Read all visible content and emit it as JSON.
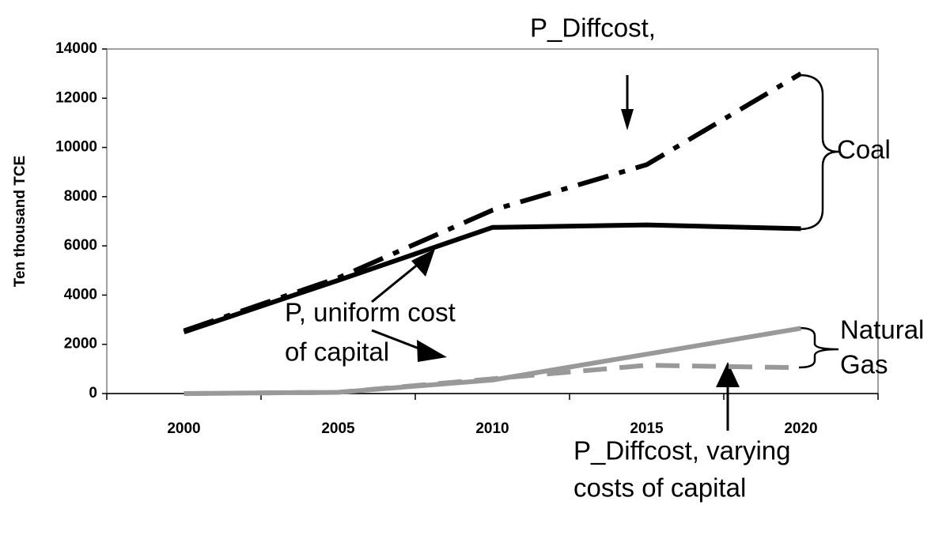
{
  "chart_data": {
    "type": "line",
    "y_label": "Ten thousand TCE",
    "categories": [
      "2000",
      "2005",
      "2010",
      "2015",
      "2020"
    ],
    "series": [
      {
        "color": "#000000",
        "dash": "solid",
        "values": [
          2500,
          4600,
          6750,
          6850,
          6700
        ]
      },
      {
        "color": "#000000",
        "dash": "dashdot",
        "values": [
          2550,
          4700,
          7450,
          9300,
          13000
        ]
      },
      {
        "color": "#999999",
        "dash": "solid",
        "values": [
          0,
          50,
          550,
          1600,
          2650
        ]
      },
      {
        "color": "#999999",
        "dash": "dashed",
        "values": [
          0,
          50,
          600,
          1150,
          1050
        ]
      }
    ],
    "ylim": [
      0,
      14000
    ],
    "yticks": [
      0,
      2000,
      4000,
      6000,
      8000,
      10000,
      12000,
      14000
    ],
    "annotations": [
      "P_Diffcost,",
      "P, uniform cost",
      "of capital",
      "P_Diffcost, varying",
      "costs of capital",
      "Coal",
      "Natural",
      "Gas"
    ]
  }
}
